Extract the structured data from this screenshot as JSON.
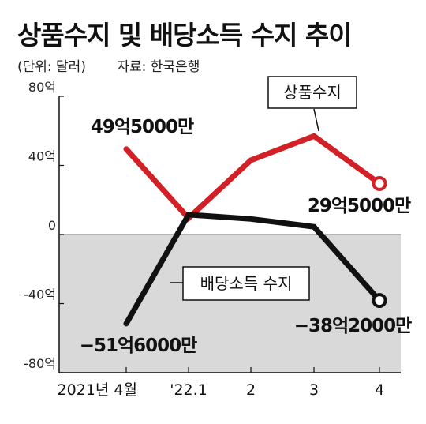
{
  "header": {
    "title": "상품수지 및 배당소득 수지 추이",
    "unit": "(단위: 달러)",
    "source": "자료: 한국은행"
  },
  "chart_data": {
    "type": "line",
    "categories": [
      "2021년 4월",
      "'22.1",
      "2",
      "3",
      "4"
    ],
    "y_ticks": [
      "80억",
      "40억",
      "0",
      "-40억",
      "-80억"
    ],
    "ylim": [
      -80,
      80
    ],
    "y_unit": "억 달러",
    "series": [
      {
        "name": "상품수지",
        "color": "#d32027",
        "values": [
          49.5,
          9.5,
          43,
          57,
          29.5
        ],
        "labels": [
          {
            "index": 0,
            "text": "49억5000만"
          },
          {
            "index": 4,
            "text": "29억5000만"
          }
        ]
      },
      {
        "name": "배당소득 수지",
        "color": "#111111",
        "values": [
          -51.6,
          11.5,
          9,
          4.5,
          -38.2
        ],
        "labels": [
          {
            "index": 0,
            "text": "−51억6000만"
          },
          {
            "index": 4,
            "text": "−38억2000만"
          }
        ]
      }
    ],
    "negative_region_color": "#d9d9d9",
    "grid": false,
    "legend": "callout boxes"
  }
}
